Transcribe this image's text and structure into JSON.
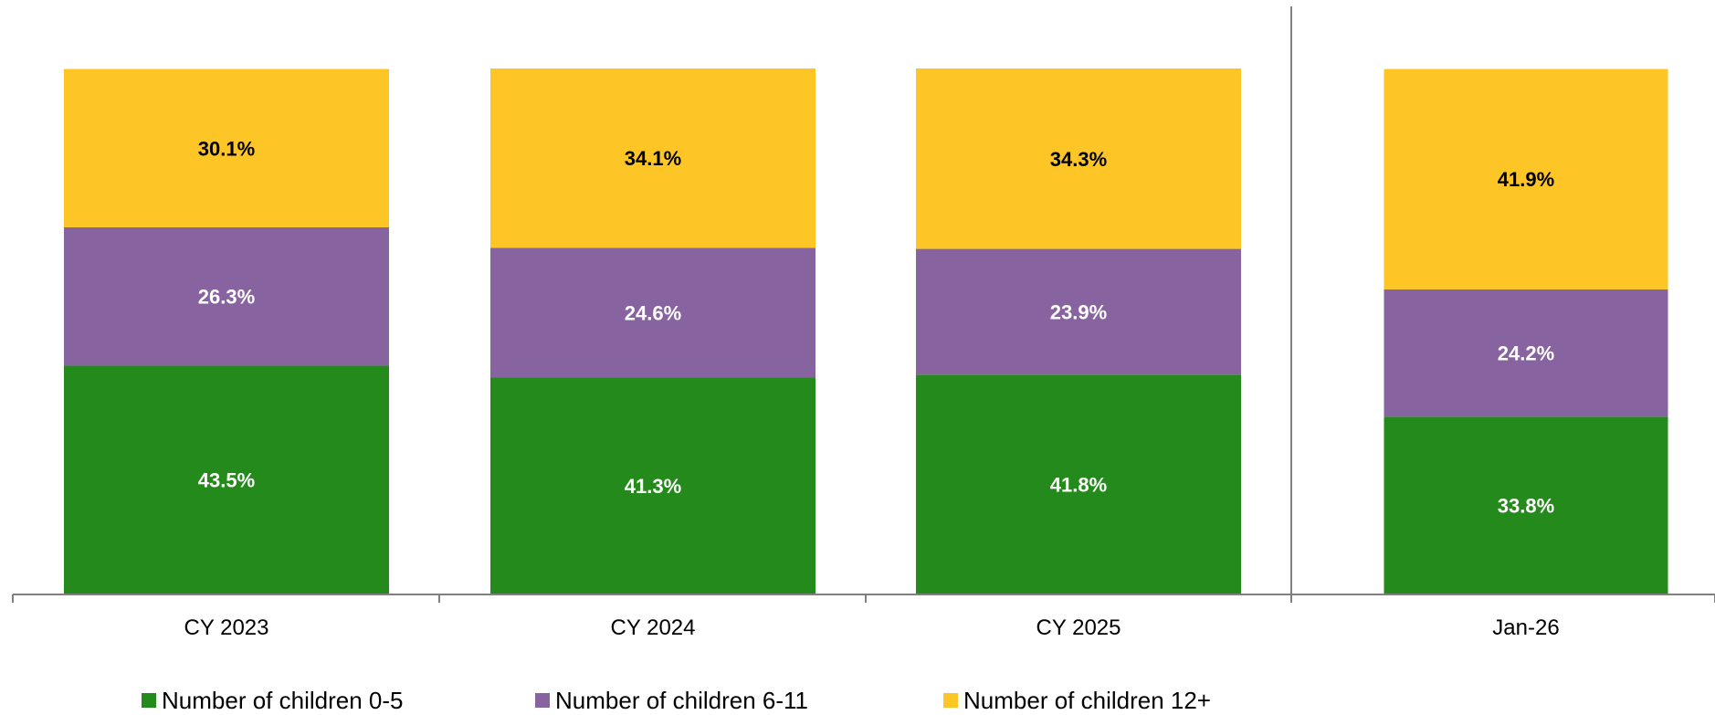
{
  "chart_data": {
    "type": "bar",
    "stacked": true,
    "percent_stacked": true,
    "categories": [
      "CY 2023",
      "CY 2024",
      "CY 2025",
      "Jan-26"
    ],
    "series": [
      {
        "name": "Number of children 0-5",
        "values": [
          43.5,
          41.3,
          41.8,
          33.8
        ],
        "labels": [
          "43.5%",
          "41.3%",
          "41.8%",
          "33.8%"
        ],
        "color": "#248a1b",
        "label_color": "#ffffff"
      },
      {
        "name": "Number of children 6-11",
        "values": [
          26.3,
          24.6,
          23.9,
          24.2
        ],
        "labels": [
          "26.3%",
          "24.6%",
          "23.9%",
          "24.2%"
        ],
        "color": "#8763a0",
        "label_color": "#ffffff"
      },
      {
        "name": "Number of children 12+",
        "values": [
          30.1,
          34.1,
          34.3,
          41.9
        ],
        "labels": [
          "30.1%",
          "34.1%",
          "34.3%",
          "41.9%"
        ],
        "color": "#fdc626",
        "label_color": "#000000"
      }
    ],
    "ylim": [
      0,
      100
    ],
    "grid": false,
    "legend_position": "bottom",
    "separator_before_category": "Jan-26",
    "axis_color": "#808080"
  }
}
